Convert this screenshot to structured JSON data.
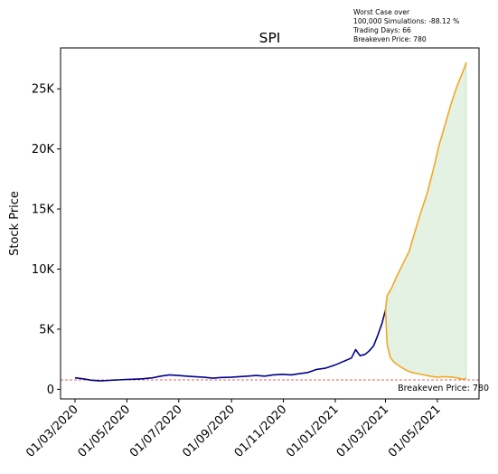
{
  "info_box": {
    "line1": "Worst Case over",
    "line2": "100,000 Simulations: -88.12 %",
    "line3": "Trading Days: 66",
    "line4": "Breakeven Price: 780"
  },
  "chart_data": {
    "type": "line",
    "title": "SPI",
    "ylabel": "Stock Price",
    "xlabel": "",
    "x_range": [
      "2020-02-13",
      "2021-06-19"
    ],
    "ylim": [
      -800,
      28400
    ],
    "x_ticks": [
      {
        "date": "2020-03-01",
        "label": "01/03/2020"
      },
      {
        "date": "2020-05-01",
        "label": "01/05/2020"
      },
      {
        "date": "2020-07-01",
        "label": "01/07/2020"
      },
      {
        "date": "2020-09-01",
        "label": "01/09/2020"
      },
      {
        "date": "2020-11-01",
        "label": "01/11/2020"
      },
      {
        "date": "2021-01-01",
        "label": "01/01/2021"
      },
      {
        "date": "2021-03-01",
        "label": "01/03/2021"
      },
      {
        "date": "2021-05-01",
        "label": "01/05/2021"
      }
    ],
    "y_ticks": [
      {
        "value": 0,
        "label": "0"
      },
      {
        "value": 5000,
        "label": "5K"
      },
      {
        "value": 10000,
        "label": "10K"
      },
      {
        "value": 15000,
        "label": "15K"
      },
      {
        "value": 20000,
        "label": "20K"
      },
      {
        "value": 25000,
        "label": "25K"
      }
    ],
    "breakeven": {
      "value": 780,
      "label": "Breakeven Price: 780",
      "color": "#e03030"
    },
    "series": [
      {
        "role": "historical",
        "color": "#00008b",
        "points": [
          [
            "2020-03-01",
            950
          ],
          [
            "2020-03-10",
            880
          ],
          [
            "2020-03-20",
            760
          ],
          [
            "2020-03-31",
            700
          ],
          [
            "2020-04-10",
            740
          ],
          [
            "2020-04-20",
            780
          ],
          [
            "2020-04-30",
            820
          ],
          [
            "2020-05-10",
            840
          ],
          [
            "2020-05-20",
            880
          ],
          [
            "2020-05-31",
            950
          ],
          [
            "2020-06-10",
            1100
          ],
          [
            "2020-06-20",
            1200
          ],
          [
            "2020-06-30",
            1150
          ],
          [
            "2020-07-10",
            1100
          ],
          [
            "2020-07-20",
            1050
          ],
          [
            "2020-07-31",
            1000
          ],
          [
            "2020-08-10",
            920
          ],
          [
            "2020-08-20",
            980
          ],
          [
            "2020-08-31",
            1000
          ],
          [
            "2020-09-10",
            1050
          ],
          [
            "2020-09-20",
            1100
          ],
          [
            "2020-09-30",
            1150
          ],
          [
            "2020-10-10",
            1100
          ],
          [
            "2020-10-20",
            1200
          ],
          [
            "2020-10-31",
            1250
          ],
          [
            "2020-11-10",
            1200
          ],
          [
            "2020-11-20",
            1300
          ],
          [
            "2020-11-30",
            1400
          ],
          [
            "2020-12-10",
            1650
          ],
          [
            "2020-12-20",
            1750
          ],
          [
            "2020-12-31",
            2000
          ],
          [
            "2021-01-10",
            2300
          ],
          [
            "2021-01-20",
            2600
          ],
          [
            "2021-01-25",
            3300
          ],
          [
            "2021-01-30",
            2800
          ],
          [
            "2021-02-05",
            2900
          ],
          [
            "2021-02-10",
            3200
          ],
          [
            "2021-02-15",
            3600
          ],
          [
            "2021-02-20",
            4500
          ],
          [
            "2021-02-25",
            5500
          ],
          [
            "2021-03-01",
            6600
          ]
        ]
      },
      {
        "role": "simulated upper bound",
        "color": "#f5a623",
        "points": [
          [
            "2021-03-01",
            6600
          ],
          [
            "2021-03-03",
            7800
          ],
          [
            "2021-03-08",
            8400
          ],
          [
            "2021-03-15",
            9500
          ],
          [
            "2021-03-22",
            10500
          ],
          [
            "2021-03-29",
            11500
          ],
          [
            "2021-04-05",
            13200
          ],
          [
            "2021-04-12",
            14800
          ],
          [
            "2021-04-19",
            16300
          ],
          [
            "2021-04-26",
            18200
          ],
          [
            "2021-05-03",
            20300
          ],
          [
            "2021-05-10",
            22000
          ],
          [
            "2021-05-17",
            23700
          ],
          [
            "2021-05-24",
            25200
          ],
          [
            "2021-05-31",
            26400
          ],
          [
            "2021-06-04",
            27200
          ]
        ]
      },
      {
        "role": "simulated lower bound",
        "color": "#f5a623",
        "points": [
          [
            "2021-03-01",
            6600
          ],
          [
            "2021-03-03",
            3700
          ],
          [
            "2021-03-07",
            2600
          ],
          [
            "2021-03-12",
            2200
          ],
          [
            "2021-03-18",
            1900
          ],
          [
            "2021-03-25",
            1600
          ],
          [
            "2021-04-01",
            1400
          ],
          [
            "2021-04-08",
            1300
          ],
          [
            "2021-04-15",
            1200
          ],
          [
            "2021-04-22",
            1100
          ],
          [
            "2021-05-01",
            1000
          ],
          [
            "2021-05-10",
            1050
          ],
          [
            "2021-05-20",
            1000
          ],
          [
            "2021-05-31",
            850
          ],
          [
            "2021-06-04",
            900
          ]
        ]
      }
    ],
    "fill_between": {
      "color": "#d8ecd8",
      "edge": "#b8dcb8"
    },
    "grid": false,
    "legend": "none"
  }
}
